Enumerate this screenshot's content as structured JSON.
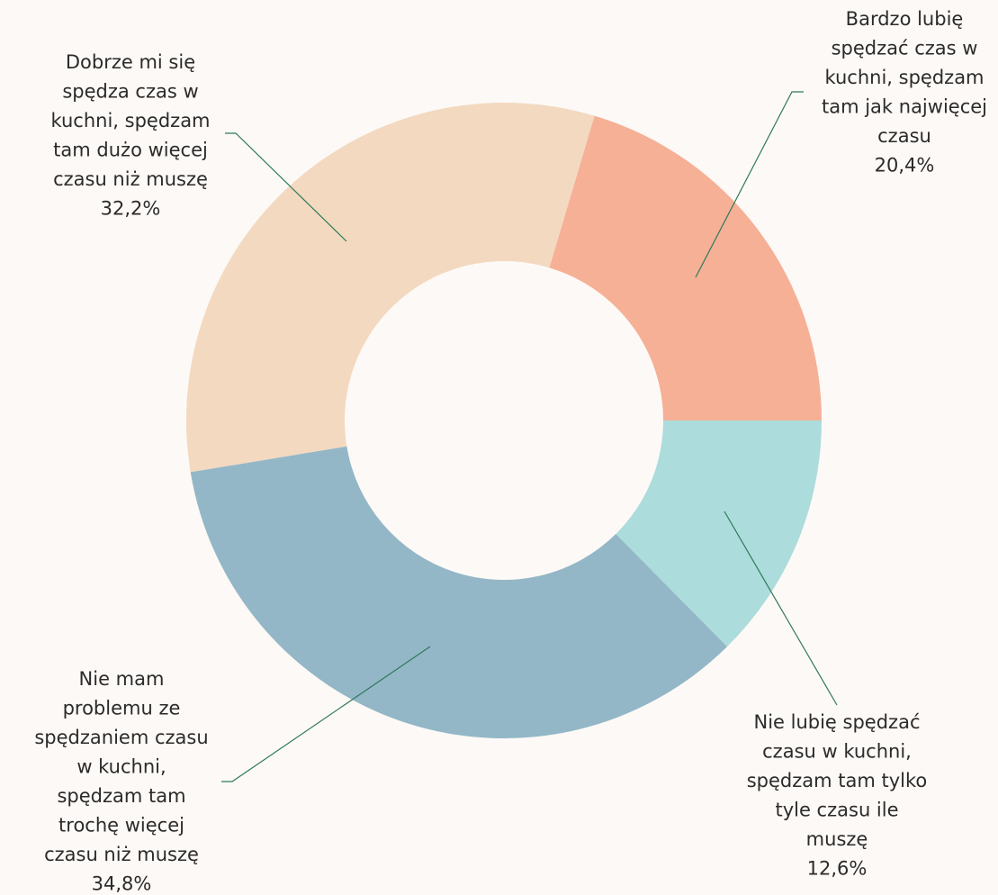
{
  "chart_data": {
    "type": "pie",
    "labels": [
      [
        "Bardzo lubię",
        "spędzać czas w",
        "kuchni, spędzam",
        "tam jak najwięcej",
        "czasu"
      ],
      [
        "Dobrze mi się",
        "spędza czas w",
        "kuchni, spędzam",
        "tam dużo więcej",
        "czasu niż muszę"
      ],
      [
        "Nie mam",
        "problemu ze",
        "spędzaniem czasu",
        "w kuchni,",
        "spędzam tam",
        "trochę więcej",
        "czasu niż muszę"
      ],
      [
        "Nie lubię spędzać",
        "czasu w kuchni,",
        "spędzam tam tylko",
        "tyle czasu ile",
        "muszę"
      ]
    ],
    "values": [
      20.4,
      32.2,
      34.8,
      12.6
    ],
    "value_labels": [
      "20,4%",
      "32,2%",
      "34,8%",
      "12,6%"
    ],
    "colors": [
      "#f5b096",
      "#f3d9c0",
      "#93b7c7",
      "#acdcdb"
    ],
    "donut": true
  }
}
